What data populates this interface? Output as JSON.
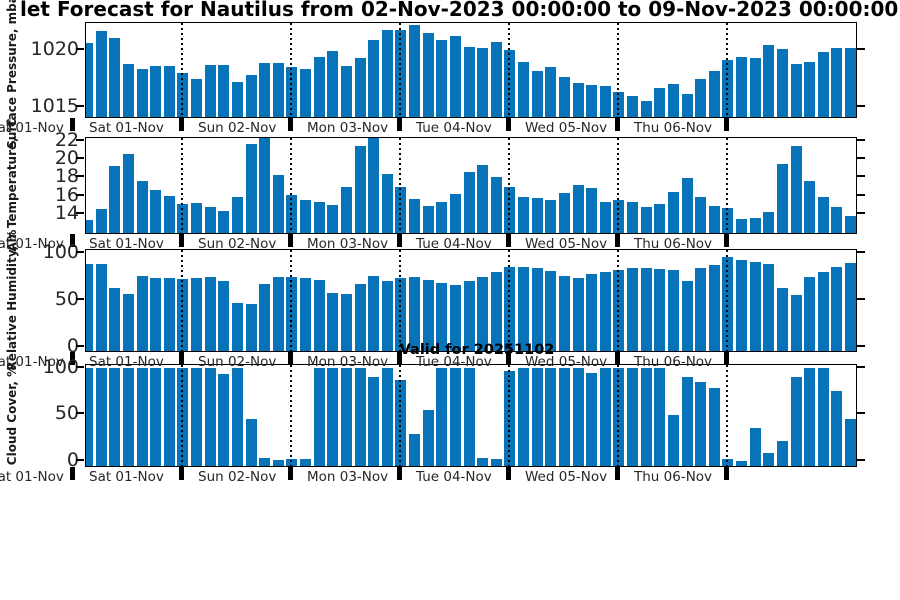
{
  "title": "let Forecast for Nautilus from 02-Nov-2023 00:00:00 to 09-Nov-2023 00:00:00",
  "valid_label": "Valid for 20251102",
  "colors": {
    "bar": "#0873b9",
    "axis": "#000000",
    "tick_text": "#262626"
  },
  "day_labels": [
    "Sat 01-Nov",
    "Sun 02-Nov",
    "Mon 03-Nov",
    "Tue 04-Nov",
    "Wed 05-Nov",
    "Thu 06-Nov"
  ],
  "edge_day_label": "Sat 01-Nov",
  "chart_data": [
    {
      "type": "bar",
      "ylabel": "Surface Pressure, mbar",
      "yticks": [
        1015,
        1020
      ],
      "ylim": [
        1014.1,
        1022.4
      ],
      "x_day_labels": [
        "Sat 01-Nov",
        "Sun 02-Nov",
        "Mon 03-Nov",
        "Tue 04-Nov",
        "Wed 05-Nov",
        "Thu 06-Nov"
      ],
      "interval_hours": 3,
      "values": [
        1020.6,
        1021.7,
        1021.1,
        1018.8,
        1018.3,
        1018.6,
        1018.6,
        1018.0,
        1017.5,
        1018.7,
        1018.7,
        1017.2,
        1017.8,
        1018.9,
        1018.9,
        1018.5,
        1018.3,
        1019.4,
        1019.9,
        1018.6,
        1019.3,
        1020.9,
        1021.8,
        1021.8,
        1022.2,
        1021.5,
        1020.9,
        1021.3,
        1020.3,
        1020.2,
        1020.7,
        1020.0,
        1019.0,
        1018.2,
        1018.5,
        1017.6,
        1017.1,
        1016.9,
        1016.8,
        1016.3,
        1016.0,
        1015.5,
        1016.7,
        1017.0,
        1016.1,
        1017.5,
        1018.2,
        1019.1,
        1019.4,
        1019.3,
        1020.5,
        1020.1,
        1018.8,
        1019.0,
        1019.8,
        1020.2,
        1020.2
      ]
    },
    {
      "type": "bar",
      "ylabel": "Air Temperature, °C",
      "yticks": [
        14,
        16,
        18,
        20,
        22
      ],
      "ylim": [
        11.9,
        22.3
      ],
      "x_day_labels": [
        "Sat 01-Nov",
        "Sun 02-Nov",
        "Mon 03-Nov",
        "Tue 04-Nov",
        "Wed 05-Nov",
        "Thu 06-Nov"
      ],
      "interval_hours": 3,
      "values": [
        13.3,
        14.5,
        19.2,
        20.6,
        17.6,
        16.6,
        16.0,
        15.1,
        15.2,
        14.7,
        14.3,
        15.9,
        21.7,
        22.8,
        18.3,
        16.1,
        15.5,
        15.3,
        15.0,
        16.9,
        21.4,
        22.9,
        18.4,
        16.9,
        15.6,
        14.9,
        15.3,
        16.2,
        18.6,
        19.3,
        18.0,
        16.9,
        15.8,
        15.7,
        15.5,
        16.3,
        17.2,
        16.8,
        15.3,
        15.5,
        15.3,
        14.8,
        15.1,
        16.4,
        17.9,
        15.8,
        14.9,
        14.6,
        13.4,
        13.6,
        14.2,
        19.5,
        21.4,
        17.6,
        15.8,
        14.8,
        13.8
      ]
    },
    {
      "type": "bar",
      "ylabel": "Relative Humidity, %",
      "yticks": [
        0,
        50,
        100
      ],
      "ylim": [
        -4.3,
        103.2
      ],
      "x_day_labels": [
        "Sat 01-Nov",
        "Sun 02-Nov",
        "Mon 03-Nov",
        "Tue 04-Nov",
        "Wed 05-Nov",
        "Thu 06-Nov"
      ],
      "interval_hours": 3,
      "values": [
        88,
        88,
        63,
        56,
        76,
        73,
        73,
        72,
        73,
        74,
        70,
        47,
        46,
        67,
        74,
        74,
        73,
        71,
        58,
        56,
        67,
        76,
        70,
        73,
        74,
        71,
        68,
        66,
        70,
        74,
        80,
        85,
        85,
        84,
        81,
        76,
        73,
        78,
        80,
        82,
        84,
        84,
        83,
        82,
        70,
        84,
        87,
        96,
        93,
        91,
        88,
        63,
        55,
        75,
        80,
        85,
        89
      ]
    },
    {
      "type": "bar",
      "ylabel": "Cloud Cover, %",
      "yticks": [
        0,
        50,
        100
      ],
      "ylim": [
        -5.4,
        103.2
      ],
      "x_day_labels": [
        "Sat 01-Nov",
        "Sun 02-Nov",
        "Mon 03-Nov",
        "Tue 04-Nov",
        "Wed 05-Nov",
        "Thu 06-Nov"
      ],
      "interval_hours": 3,
      "values": [
        100,
        100,
        100,
        100,
        100,
        100,
        100,
        100,
        100,
        100,
        94,
        100,
        45,
        3,
        1,
        2,
        2,
        100,
        100,
        100,
        100,
        90,
        100,
        87,
        29,
        55,
        100,
        100,
        100,
        3,
        2,
        97,
        100,
        100,
        100,
        100,
        100,
        95,
        100,
        100,
        100,
        100,
        100,
        50,
        90,
        85,
        78,
        2,
        0,
        35,
        9,
        22,
        90,
        100,
        100,
        75,
        45
      ]
    }
  ]
}
